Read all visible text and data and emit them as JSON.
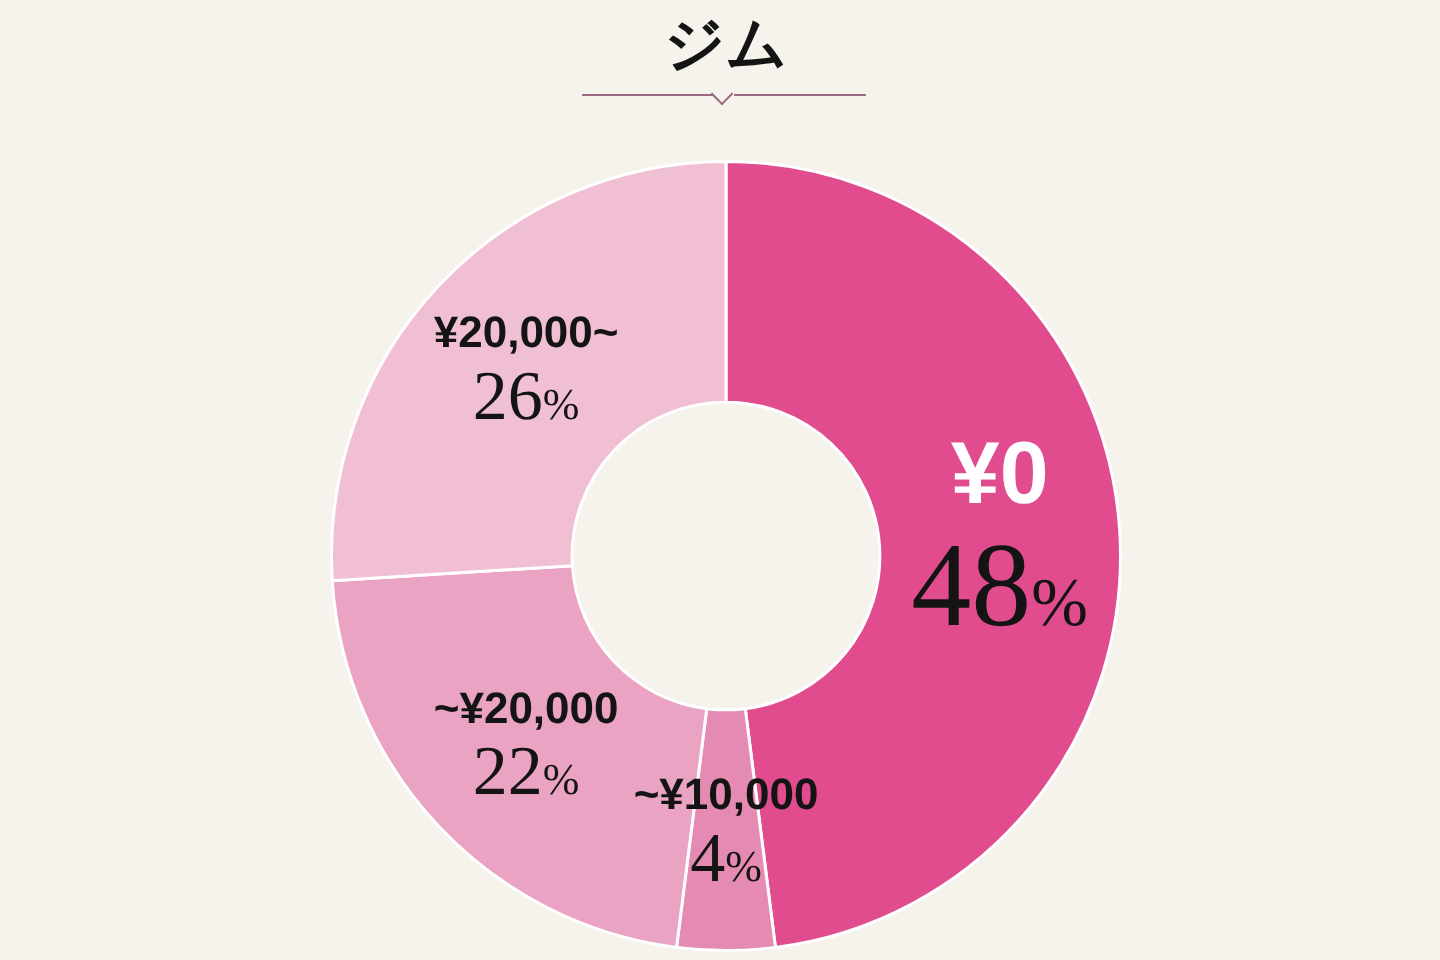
{
  "chart_data": {
    "type": "donut",
    "title": "ジム",
    "categories": [
      "¥0",
      "~¥10,000",
      "~¥20,000",
      "¥20,000~"
    ],
    "values": [
      48,
      4,
      22,
      26
    ],
    "colors": [
      "#e14c8f",
      "#e58ab2",
      "#eaa3c3",
      "#f0bfd4"
    ],
    "value_labels": [
      "48%",
      "4%",
      "22%",
      "26%"
    ]
  }
}
